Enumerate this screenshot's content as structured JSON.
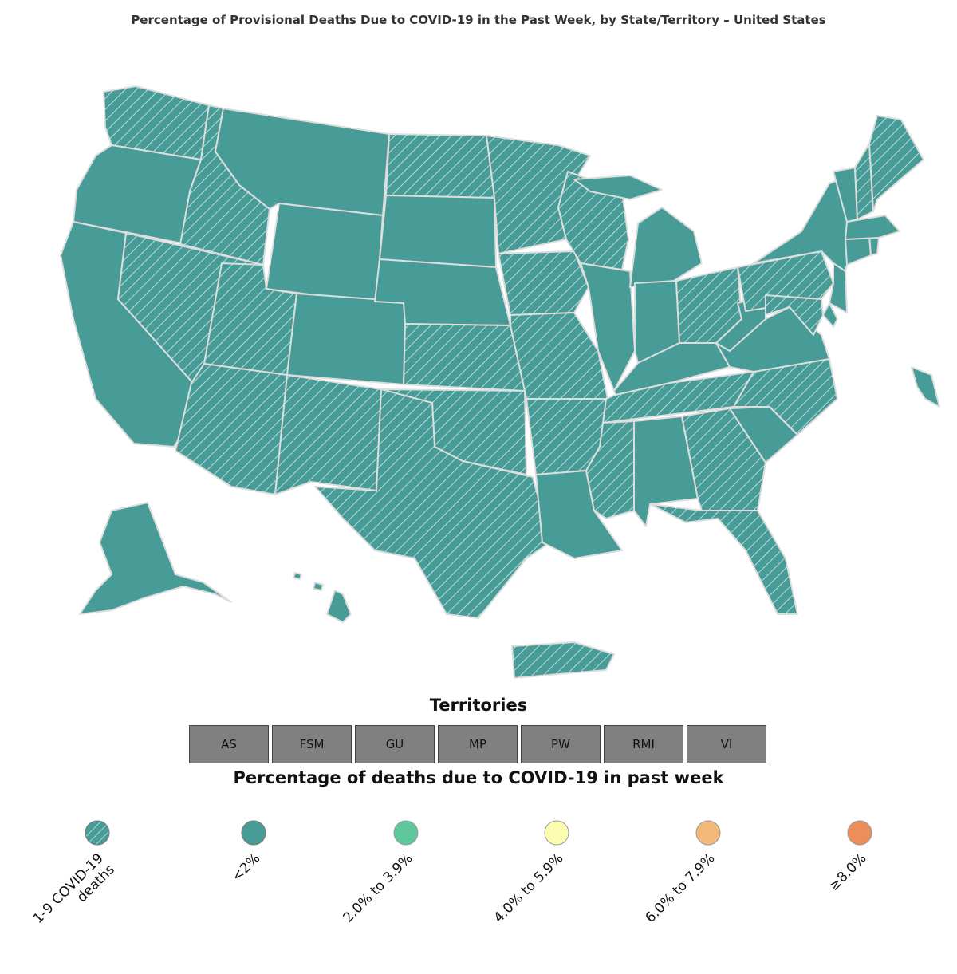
{
  "title": "Percentage of Provisional Deaths Due to COVID-19 in the Past Week, by State/Territory – United States",
  "territories": {
    "title": "Territories",
    "items": [
      "AS",
      "FSM",
      "GU",
      "MP",
      "PW",
      "RMI",
      "VI"
    ]
  },
  "legend": {
    "title": "Percentage of deaths due to COVID-19 in past week",
    "items": [
      {
        "label_line1": "1-9 COVID-19",
        "label_line2": "deaths",
        "color": "#479c98",
        "hatched": true
      },
      {
        "label_line1": "<2%",
        "label_line2": "",
        "color": "#479c98",
        "hatched": false
      },
      {
        "label_line1": "2.0% to 3.9%",
        "label_line2": "",
        "color": "#5ec79c",
        "hatched": false
      },
      {
        "label_line1": "4.0% to 5.9%",
        "label_line2": "",
        "color": "#fcfdb0",
        "hatched": false
      },
      {
        "label_line1": "6.0% to 7.9%",
        "label_line2": "",
        "color": "#f3b97a",
        "hatched": false
      },
      {
        "label_line1": "≥8.0%",
        "label_line2": "",
        "color": "#ec8d5c",
        "hatched": false
      }
    ]
  },
  "map": {
    "base_color": "#479c98",
    "border_color": "#dddddd",
    "regions": [
      {
        "name": "WA",
        "hatched": true
      },
      {
        "name": "OR",
        "hatched": false
      },
      {
        "name": "CA",
        "hatched": false
      },
      {
        "name": "ID",
        "hatched": true
      },
      {
        "name": "NV",
        "hatched": true
      },
      {
        "name": "MT",
        "hatched": false
      },
      {
        "name": "WY",
        "hatched": false
      },
      {
        "name": "UT",
        "hatched": true
      },
      {
        "name": "AZ",
        "hatched": true
      },
      {
        "name": "CO",
        "hatched": false
      },
      {
        "name": "NM",
        "hatched": true
      },
      {
        "name": "ND",
        "hatched": true
      },
      {
        "name": "SD",
        "hatched": false
      },
      {
        "name": "NE",
        "hatched": false
      },
      {
        "name": "KS",
        "hatched": true
      },
      {
        "name": "OK",
        "hatched": true
      },
      {
        "name": "TX",
        "hatched": true
      },
      {
        "name": "MN",
        "hatched": true
      },
      {
        "name": "IA",
        "hatched": true
      },
      {
        "name": "MO",
        "hatched": true
      },
      {
        "name": "AR",
        "hatched": true
      },
      {
        "name": "LA",
        "hatched": false
      },
      {
        "name": "WI",
        "hatched": true
      },
      {
        "name": "IL",
        "hatched": false
      },
      {
        "name": "MI",
        "hatched": false
      },
      {
        "name": "IN",
        "hatched": false
      },
      {
        "name": "OH",
        "hatched": true
      },
      {
        "name": "KY",
        "hatched": false
      },
      {
        "name": "TN",
        "hatched": true
      },
      {
        "name": "MS",
        "hatched": true
      },
      {
        "name": "AL",
        "hatched": false
      },
      {
        "name": "GA",
        "hatched": true
      },
      {
        "name": "FL",
        "hatched": true
      },
      {
        "name": "SC",
        "hatched": false
      },
      {
        "name": "NC",
        "hatched": true
      },
      {
        "name": "VA",
        "hatched": false
      },
      {
        "name": "WV",
        "hatched": false
      },
      {
        "name": "PA",
        "hatched": true
      },
      {
        "name": "NY",
        "hatched": false
      },
      {
        "name": "NJ",
        "hatched": false
      },
      {
        "name": "DE",
        "hatched": false
      },
      {
        "name": "MD",
        "hatched": true
      },
      {
        "name": "CT",
        "hatched": false
      },
      {
        "name": "RI",
        "hatched": false
      },
      {
        "name": "MA",
        "hatched": false
      },
      {
        "name": "VT",
        "hatched": false
      },
      {
        "name": "NH",
        "hatched": true
      },
      {
        "name": "ME",
        "hatched": true
      },
      {
        "name": "AK",
        "hatched": false
      },
      {
        "name": "HI",
        "hatched": false
      },
      {
        "name": "PR",
        "hatched": true
      },
      {
        "name": "DC",
        "hatched": false
      }
    ]
  }
}
